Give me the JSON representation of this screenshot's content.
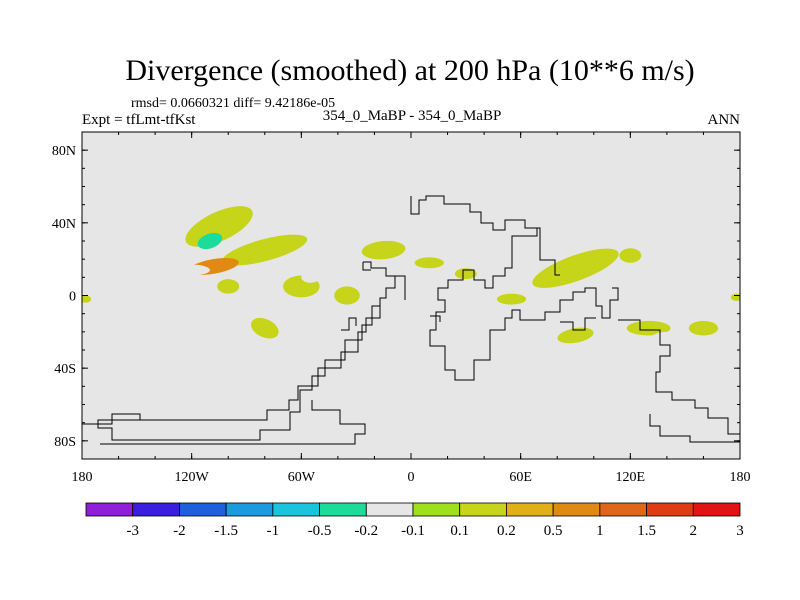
{
  "chart_data": {
    "type": "heatmap",
    "title": "Divergence (smoothed) at 200 hPa (10**6 m/s)",
    "stats": "rmsd= 0.0660321 diff= 9.42186e-05",
    "experiment": "Expt = tfLmt-tfKst",
    "subtitle": "354_0_MaBP - 354_0_MaBP",
    "season": "ANN",
    "xlim": [
      -180,
      180
    ],
    "ylim": [
      -90,
      90
    ],
    "x_ticks": [
      {
        "value": -180,
        "label": "180"
      },
      {
        "value": -120,
        "label": "120W"
      },
      {
        "value": -60,
        "label": "60W"
      },
      {
        "value": 0,
        "label": "0"
      },
      {
        "value": 60,
        "label": "60E"
      },
      {
        "value": 120,
        "label": "120E"
      },
      {
        "value": 180,
        "label": "180"
      }
    ],
    "y_ticks": [
      {
        "value": 80,
        "label": "80N"
      },
      {
        "value": 40,
        "label": "40N"
      },
      {
        "value": 0,
        "label": "0"
      },
      {
        "value": -40,
        "label": "40S"
      },
      {
        "value": -80,
        "label": "80S"
      }
    ],
    "colorbar": {
      "colors": [
        "#8f1fd8",
        "#3a1fe0",
        "#1f5fdd",
        "#1c9ae0",
        "#19c4dc",
        "#1ddc9a",
        "#e6e6e6",
        "#9ee01c",
        "#c6d41a",
        "#e0b016",
        "#e08a14",
        "#e0661a",
        "#e03c14",
        "#e01414"
      ],
      "labels": [
        "-3",
        "-2",
        "-1.5",
        "-1",
        "-0.5",
        "-0.2",
        "-0.1",
        "0.1",
        "0.2",
        "0.5",
        "1",
        "1.5",
        "2",
        "3"
      ],
      "background": "#e6e6e6"
    },
    "regions": [
      {
        "lon": -105,
        "lat": 38,
        "rlon": 20,
        "rlat": 8,
        "rot": -25,
        "value": 0.15
      },
      {
        "lon": -110,
        "lat": 30,
        "rlon": 7,
        "rlat": 4,
        "rot": -20,
        "value": -0.5
      },
      {
        "lon": -80,
        "lat": 25,
        "rlon": 24,
        "rlat": 6,
        "rot": -15,
        "value": 0.15
      },
      {
        "lon": -108,
        "lat": 16,
        "rlon": 14,
        "rlat": 4,
        "rot": -10,
        "value": 0.6
      },
      {
        "lon": -150,
        "lat": 15,
        "rlon": 10,
        "rlat": 4,
        "rot": 0,
        "value": -0.15
      },
      {
        "lon": -120,
        "lat": 14,
        "rlon": 10,
        "rlat": 3,
        "rot": 0,
        "value": -0.15
      },
      {
        "lon": -70,
        "lat": 17,
        "rlon": 6,
        "rlat": 3,
        "rot": 0,
        "value": -0.15
      },
      {
        "lon": -100,
        "lat": 5,
        "rlon": 6,
        "rlat": 4,
        "rot": 0,
        "value": 0.15
      },
      {
        "lon": -125,
        "lat": -2,
        "rlon": 5,
        "rlat": 3,
        "rot": 0,
        "value": -0.15
      },
      {
        "lon": -90,
        "lat": 0,
        "rlon": 5,
        "rlat": 3,
        "rot": 0,
        "value": -0.15
      },
      {
        "lon": -60,
        "lat": 5,
        "rlon": 10,
        "rlat": 6,
        "rot": 0,
        "value": 0.15
      },
      {
        "lon": -45,
        "lat": 10,
        "rlon": 6,
        "rlat": 5,
        "rot": 0,
        "value": -0.15
      },
      {
        "lon": -55,
        "lat": 10,
        "rlon": 5,
        "rlat": 3,
        "rot": 0,
        "value": -0.15
      },
      {
        "lon": -35,
        "lat": 0,
        "rlon": 7,
        "rlat": 5,
        "rot": 0,
        "value": 0.15
      },
      {
        "lon": -40,
        "lat": -8,
        "rlon": 4,
        "rlat": 3,
        "rot": 0,
        "value": -0.15
      },
      {
        "lon": -120,
        "lat": -22,
        "rlon": 12,
        "rlat": 7,
        "rot": 20,
        "value": -0.15
      },
      {
        "lon": -80,
        "lat": -18,
        "rlon": 8,
        "rlat": 5,
        "rot": 25,
        "value": 0.15
      },
      {
        "lon": -65,
        "lat": -22,
        "rlon": 5,
        "rlat": 3,
        "rot": 0,
        "value": -0.15
      },
      {
        "lon": -178,
        "lat": -2,
        "rlon": 3,
        "rlat": 2,
        "rot": 0,
        "value": 0.15
      },
      {
        "lon": -15,
        "lat": 25,
        "rlon": 12,
        "rlat": 5,
        "rot": -5,
        "value": 0.15
      },
      {
        "lon": 10,
        "lat": 18,
        "rlon": 8,
        "rlat": 3,
        "rot": 0,
        "value": 0.15
      },
      {
        "lon": 30,
        "lat": 12,
        "rlon": 6,
        "rlat": 3,
        "rot": 0,
        "value": 0.15
      },
      {
        "lon": 25,
        "lat": 0,
        "rlon": 5,
        "rlat": 3,
        "rot": 0,
        "value": -0.15
      },
      {
        "lon": 50,
        "lat": 40,
        "rlon": 3,
        "rlat": 2,
        "rot": 0,
        "value": -0.15
      },
      {
        "lon": 68,
        "lat": 42,
        "rlon": 4,
        "rlat": 2,
        "rot": 0,
        "value": -0.15
      },
      {
        "lon": 62,
        "lat": 20,
        "rlon": 8,
        "rlat": 4,
        "rot": 0,
        "value": -0.15
      },
      {
        "lon": 85,
        "lat": 32,
        "rlon": 6,
        "rlat": 5,
        "rot": 0,
        "value": -0.15
      },
      {
        "lon": 90,
        "lat": 15,
        "rlon": 25,
        "rlat": 7,
        "rot": -20,
        "value": 0.15
      },
      {
        "lon": 100,
        "lat": 5,
        "rlon": 20,
        "rlat": 5,
        "rot": -15,
        "value": -0.15
      },
      {
        "lon": 135,
        "lat": 30,
        "rlon": 6,
        "rlat": 3,
        "rot": 0,
        "value": -0.15
      },
      {
        "lon": 120,
        "lat": 22,
        "rlon": 6,
        "rlat": 4,
        "rot": 0,
        "value": 0.15
      },
      {
        "lon": 142,
        "lat": 12,
        "rlon": 10,
        "rlat": 4,
        "rot": 0,
        "value": -0.15
      },
      {
        "lon": 168,
        "lat": 22,
        "rlon": 8,
        "rlat": 4,
        "rot": 0,
        "value": -0.15
      },
      {
        "lon": 178,
        "lat": -1,
        "rlon": 3,
        "rlat": 2,
        "rot": 0,
        "value": 0.15
      },
      {
        "lon": 55,
        "lat": -2,
        "rlon": 8,
        "rlat": 3,
        "rot": 0,
        "value": 0.15
      },
      {
        "lon": 65,
        "lat": -18,
        "rlon": 8,
        "rlat": 4,
        "rot": 0,
        "value": -0.15
      },
      {
        "lon": 90,
        "lat": -22,
        "rlon": 10,
        "rlat": 4,
        "rot": -10,
        "value": 0.15
      },
      {
        "lon": 108,
        "lat": -15,
        "rlon": 8,
        "rlat": 3,
        "rot": 0,
        "value": -0.15
      },
      {
        "lon": 130,
        "lat": -18,
        "rlon": 12,
        "rlat": 4,
        "rot": 0,
        "value": 0.15
      },
      {
        "lon": 140,
        "lat": -25,
        "rlon": 10,
        "rlat": 5,
        "rot": 0,
        "value": -0.15
      },
      {
        "lon": 160,
        "lat": -18,
        "rlon": 8,
        "rlat": 4,
        "rot": 0,
        "value": 0.15
      }
    ]
  }
}
